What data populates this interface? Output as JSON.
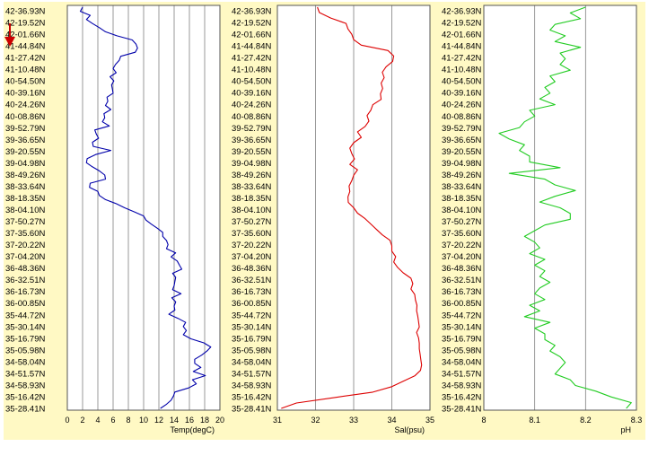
{
  "arrow_color": "#cc0000",
  "panel_background": "#fff9c4",
  "latitude_labels": [
    "42-36.93N",
    "42-19.52N",
    "42-01.66N",
    "41-44.84N",
    "41-27.42N",
    "41-10.48N",
    "40-54.50N",
    "40-39.16N",
    "40-24.26N",
    "40-08.86N",
    "39-52.79N",
    "39-36.65N",
    "39-20.55N",
    "39-04.98N",
    "38-49.26N",
    "38-33.64N",
    "38-18.35N",
    "38-04.10N",
    "37-50.27N",
    "37-35.60N",
    "37-20.22N",
    "37-04.20N",
    "36-48.36N",
    "36-32.51N",
    "36-16.73N",
    "36-00.85N",
    "35-44.72N",
    "35-30.14N",
    "35-16.79N",
    "35-05.98N",
    "34-58.04N",
    "34-51.57N",
    "34-58.93N",
    "35-16.42N",
    "35-28.41N"
  ],
  "chart_data": [
    {
      "type": "line",
      "xlabel": "Temp(degC)",
      "xlim": [
        0,
        20
      ],
      "xticks": [
        "0",
        "2",
        "4",
        "6",
        "8",
        "10",
        "12",
        "14",
        "16",
        "18",
        "20"
      ],
      "color": "#0000aa",
      "grid": true,
      "values": [
        2.0,
        1.7,
        3.0,
        2.5,
        3.3,
        4.2,
        5.0,
        6.5,
        8.5,
        9.0,
        9.2,
        8.9,
        7.0,
        6.8,
        6.3,
        6.0,
        6.4,
        5.6,
        6.1,
        5.8,
        5.9,
        6.0,
        5.2,
        5.3,
        5.0,
        5.7,
        4.8,
        4.9,
        4.6,
        5.5,
        3.6,
        3.8,
        4.1,
        3.3,
        3.4,
        5.7,
        3.7,
        2.6,
        2.5,
        3.3,
        4.2,
        4.9,
        5.0,
        3.0,
        2.9,
        4.0,
        4.2,
        5.0,
        6.4,
        7.5,
        8.8,
        10.0,
        10.3,
        11.0,
        11.8,
        12.5,
        12.5,
        13.0,
        13.2,
        13.0,
        14.2,
        13.6,
        14.4,
        14.7,
        15.0,
        13.8,
        14.2,
        14.1,
        14.0,
        13.8,
        14.9,
        13.7,
        14.2,
        14.0,
        14.1,
        13.3,
        14.5,
        15.5,
        15.2,
        15.6,
        15.2,
        16.2,
        17.9,
        18.8,
        18.3,
        17.6,
        16.7,
        16.7,
        17.5,
        16.5,
        18.1,
        16.4,
        16.9,
        15.9,
        14.1,
        13.9,
        13.6,
        13.0,
        12.2
      ]
    },
    {
      "type": "line",
      "xlabel": "Sal(psu)",
      "xlim": [
        31,
        35
      ],
      "xticks": [
        "31",
        "32",
        "33",
        "34",
        "35"
      ],
      "color": "#dd0000",
      "grid": true,
      "values": [
        32.05,
        32.1,
        32.4,
        32.8,
        32.85,
        32.95,
        33.0,
        33.2,
        33.9,
        34.05,
        34.02,
        33.85,
        33.75,
        33.8,
        33.72,
        33.76,
        33.7,
        33.72,
        33.5,
        33.45,
        33.35,
        33.4,
        33.3,
        33.1,
        33.2,
        33.0,
        32.9,
        32.95,
        33.02,
        32.9,
        33.1,
        33.0,
        32.95,
        32.88,
        32.9,
        32.85,
        32.86,
        33.0,
        33.1,
        33.3,
        33.45,
        33.6,
        33.75,
        33.95,
        34.0,
        34.0,
        34.1,
        34.05,
        34.15,
        34.3,
        34.5,
        34.55,
        34.5,
        34.6,
        34.62,
        34.66,
        34.65,
        34.68,
        34.7,
        34.72,
        34.65,
        34.7,
        34.72,
        34.72,
        34.74,
        34.76,
        34.78,
        34.75,
        34.6,
        34.3,
        34.0,
        33.5,
        32.5,
        31.5,
        31.1
      ]
    },
    {
      "type": "line",
      "xlabel": "pH",
      "xlim": [
        8,
        8.3
      ],
      "xticks": [
        "8",
        "8.1",
        "8.2",
        "8.3"
      ],
      "color": "#22cc22",
      "grid": true,
      "values": [
        8.2,
        8.17,
        8.19,
        8.14,
        8.13,
        8.16,
        8.14,
        8.19,
        8.15,
        8.16,
        8.15,
        8.17,
        8.13,
        8.14,
        8.12,
        8.13,
        8.11,
        8.14,
        8.09,
        8.1,
        8.08,
        8.07,
        8.03,
        8.05,
        8.08,
        8.07,
        8.09,
        8.09,
        8.15,
        8.05,
        8.12,
        8.14,
        8.18,
        8.14,
        8.11,
        8.15,
        8.17,
        8.17,
        8.12,
        8.1,
        8.08,
        8.1,
        8.11,
        8.09,
        8.12,
        8.1,
        8.12,
        8.11,
        8.13,
        8.11,
        8.1,
        8.12,
        8.09,
        8.11,
        8.08,
        8.13,
        8.1,
        8.12,
        8.12,
        8.14,
        8.13,
        8.15,
        8.16,
        8.15,
        8.14,
        8.17,
        8.18,
        8.22,
        8.25,
        8.29,
        8.28
      ]
    }
  ]
}
